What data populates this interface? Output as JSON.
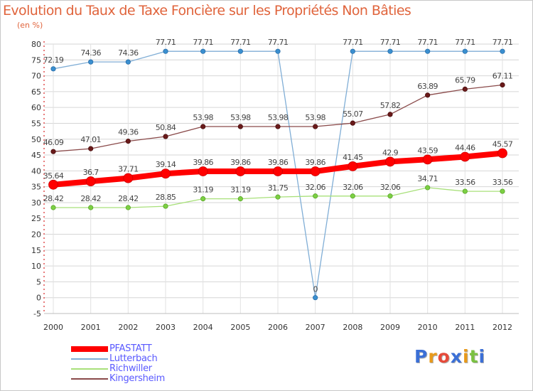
{
  "title": "Evolution du Taux de Taxe Foncière sur les Propriétés Non Bâties",
  "unit_label": "(en %)",
  "chart_data": {
    "type": "line",
    "title": "Evolution du Taux de Taxe Foncière sur les Propriétés Non Bâties",
    "ylabel": "(en %)",
    "xlabel": "",
    "x": [
      "2000",
      "2001",
      "2002",
      "2003",
      "2004",
      "2005",
      "2006",
      "2007",
      "2008",
      "2009",
      "2010",
      "2011",
      "2012"
    ],
    "ylim": [
      -5,
      80
    ],
    "yticks": [
      -5,
      0,
      5,
      10,
      15,
      20,
      25,
      30,
      35,
      40,
      45,
      50,
      55,
      60,
      65,
      70,
      75,
      80
    ],
    "grid": true,
    "legend_position": "bottom-left",
    "series": [
      {
        "name": "PFASTATT",
        "color": "#ff0000",
        "values": [
          35.64,
          36.7,
          37.71,
          39.14,
          39.86,
          39.86,
          39.86,
          39.86,
          41.45,
          42.9,
          43.59,
          44.46,
          45.57
        ],
        "labels": [
          "35.64",
          "36.7",
          "37.71",
          "39.14",
          "39.86",
          "39.86",
          "39.86",
          "39.86",
          "41.45",
          "42.9",
          "43.59",
          "44.46",
          "45.57"
        ]
      },
      {
        "name": "Lutterbach",
        "color": "#5b9bd5",
        "values": [
          72.19,
          74.36,
          74.36,
          77.71,
          77.71,
          77.71,
          77.71,
          0,
          77.71,
          77.71,
          77.71,
          77.71,
          77.71
        ],
        "labels": [
          "72.19",
          "74.36",
          "74.36",
          "77.71",
          "77.71",
          "77.71",
          "77.71",
          "0",
          "77.71",
          "77.71",
          "77.71",
          "77.71",
          "77.71"
        ]
      },
      {
        "name": "Richwiller",
        "color": "#99d85a",
        "values": [
          28.42,
          28.42,
          28.42,
          28.85,
          31.19,
          31.19,
          31.75,
          32.06,
          32.06,
          32.06,
          34.71,
          33.56,
          33.56
        ],
        "labels": [
          "28.42",
          "28.42",
          "28.42",
          "28.85",
          "31.19",
          "31.19",
          "31.75",
          "32.06",
          "32.06",
          "32.06",
          "34.71",
          "33.56",
          "33.56"
        ]
      },
      {
        "name": "Kingersheim",
        "color": "#7a2a2a",
        "values": [
          46.09,
          47.01,
          49.36,
          50.84,
          53.98,
          53.98,
          53.98,
          53.98,
          55.07,
          57.82,
          63.89,
          65.79,
          67.11
        ],
        "labels": [
          "46.09",
          "47.01",
          "49.36",
          "50.84",
          "53.98",
          "53.98",
          "53.98",
          "53.98",
          "55.07",
          "57.82",
          "63.89",
          "65.79",
          "67.11"
        ]
      }
    ]
  },
  "logo": {
    "text": "Proxiti",
    "letters": [
      "P",
      "r",
      "o",
      "x",
      "i",
      "t",
      "i"
    ],
    "colors": [
      "#3b6fd6",
      "#e89a1a",
      "#e64a3a",
      "#3b6fd6",
      "#e89a1a",
      "#7ac142",
      "#3b6fd6"
    ]
  }
}
